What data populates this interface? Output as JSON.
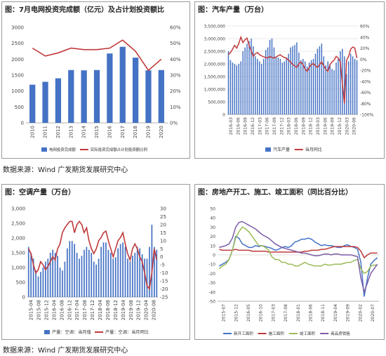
{
  "source_note": "数据来源：Wind  广发期货发展研究中心",
  "chart_data": [
    {
      "id": "grid",
      "type": "bar",
      "title": "图：7月电网投资完成额（亿元）及占计划投资额比",
      "categories": [
        "2010",
        "2011",
        "2012",
        "2013",
        "2014",
        "2015",
        "2016",
        "2017",
        "2018",
        "2019",
        "2020"
      ],
      "ylim": [
        0,
        3000
      ],
      "y_ticks": [
        "0",
        "500",
        "1000",
        "1500",
        "2000",
        "2500",
        "3000"
      ],
      "y2lim": [
        0,
        60
      ],
      "y2_ticks": [
        "0%",
        "10%",
        "20%",
        "30%",
        "40%",
        "50%",
        "60%"
      ],
      "colors": {
        "bar": "#4472c4",
        "line": "#c0393b"
      },
      "series": [
        {
          "name": "电网投资完成额",
          "axis": "left",
          "values": [
            1200,
            1290,
            1400,
            1660,
            1650,
            1660,
            2180,
            2390,
            2050,
            1650,
            1660
          ]
        },
        {
          "name": "实际投资完成额占计划投资额比例",
          "axis": "right",
          "values": [
            47,
            42,
            44,
            47,
            46,
            46,
            47,
            52,
            45,
            33,
            40
          ]
        }
      ]
    },
    {
      "id": "auto",
      "type": "bar",
      "title": "图：汽车产量（万台）",
      "x_ticks": [
        "2016-03",
        "2016-06",
        "2016-09",
        "2016-12",
        "2017-03",
        "2017-06",
        "2017-09",
        "2017-12",
        "2018-03",
        "2018-06",
        "2018-09",
        "2018-12",
        "2019-03",
        "2019-06",
        "2019-09",
        "2019-12",
        "2020-03",
        "2020-06"
      ],
      "ylim": [
        0,
        3500000
      ],
      "y_ticks": [
        "0",
        "500,000",
        "1,000,000",
        "1,500,000",
        "2,000,000",
        "2,500,000",
        "3,000,000",
        "3,500,000"
      ],
      "y2lim": [
        -100,
        60
      ],
      "y2_ticks": [
        "-100%",
        "-80%",
        "-60%",
        "-40%",
        "-20%",
        "0%",
        "20%",
        "40%",
        "60%"
      ],
      "colors": {
        "bar": "#4472c4",
        "line": "#c0393b"
      },
      "series": [
        {
          "name": "汽车产量",
          "axis": "left",
          "values": [
            2500000,
            2150000,
            2050000,
            2000000,
            1950000,
            2000000,
            2100000,
            2500000,
            2650000,
            2800000,
            2900000,
            3000000,
            2700000,
            2300000,
            2200000,
            2100000,
            2000000,
            2200000,
            2550000,
            2650000,
            2950000,
            3000000,
            2650000,
            2300000,
            2250000,
            2200000,
            2050000,
            2100000,
            2250000,
            2400000,
            2650000,
            2700000,
            2750000,
            2850000,
            2450000,
            2150000,
            2200000,
            2100000,
            1900000,
            2050000,
            2150000,
            2200000,
            2400000,
            2600000,
            2700000,
            2800000,
            2300000,
            1950000,
            2100000,
            1950000,
            1800000,
            1750000,
            2050000,
            2200000,
            2500000,
            2600000,
            2300000,
            1600000,
            2100000,
            2400000,
            2300000,
            2200000,
            2150000
          ]
        },
        {
          "name": "当月同比",
          "axis": "right",
          "values": [
            8,
            12,
            18,
            25,
            20,
            28,
            40,
            30,
            35,
            38,
            25,
            15,
            5,
            10,
            12,
            8,
            6,
            4,
            3,
            2,
            5,
            3,
            2,
            4,
            6,
            8,
            5,
            3,
            2,
            -2,
            -5,
            -10,
            -12,
            -15,
            -8,
            -5,
            -10,
            -18,
            -22,
            -15,
            -10,
            -8,
            -12,
            -15,
            -10,
            -5,
            -12,
            -18,
            -22,
            -10,
            -5,
            -2,
            5,
            2,
            -5,
            -45,
            -80,
            -2,
            5,
            18,
            22,
            20,
            2
          ]
        }
      ]
    },
    {
      "id": "ac",
      "type": "bar",
      "title": "图：空调产量（万台）",
      "x_ticks": [
        "2015-04",
        "2015-08",
        "2015-12",
        "2016-04",
        "2016-08",
        "2016-12",
        "2017-04",
        "2017-08",
        "2017-12",
        "2018-04",
        "2018-08",
        "2018-12",
        "2019-04",
        "2019-08",
        "2019-12",
        "2020-04",
        "2020-08"
      ],
      "ylim": [
        0,
        3000
      ],
      "y_ticks": [
        "0",
        "500",
        "1,000",
        "1,500",
        "2,000",
        "2,500",
        "3,000"
      ],
      "y2lim": [
        -25,
        30
      ],
      "y2_ticks": [
        "-25",
        "-20",
        "-15",
        "-10",
        "-5",
        "0",
        "5",
        "10",
        "15",
        "20",
        "25",
        "30"
      ],
      "colors": {
        "bar": "#4472c4",
        "line": "#c0393b"
      },
      "series": [
        {
          "name": "产量：空调：当月值",
          "axis": "left",
          "values": [
            1700,
            1500,
            1300,
            900,
            700,
            850,
            1000,
            1200,
            1300,
            1500,
            1600,
            1500,
            1400,
            1000,
            900,
            1200,
            1650,
            1900,
            1900,
            1800,
            1500,
            1300,
            1400,
            1600,
            1700,
            1600,
            1500,
            1200,
            1100,
            1300,
            1700,
            1850,
            1850,
            1600,
            1500,
            1300,
            1350,
            1650,
            1800,
            1850,
            1700,
            1300,
            1200,
            1400,
            1500,
            1700,
            1650,
            1450,
            1300,
            1300,
            1700,
            2450,
            1700,
            1600
          ]
        },
        {
          "name": "产量：空调：当月同比",
          "axis": "right",
          "values": [
            5,
            2,
            -5,
            -10,
            -8,
            -3,
            -5,
            -8,
            -6,
            -3,
            0,
            -2,
            5,
            8,
            15,
            18,
            20,
            22,
            22,
            15,
            20,
            22,
            20,
            15,
            18,
            10,
            5,
            2,
            5,
            10,
            12,
            15,
            16,
            10,
            5,
            0,
            5,
            10,
            12,
            15,
            8,
            2,
            -2,
            5,
            8,
            5,
            0,
            -3,
            -10,
            -18,
            -20,
            -10,
            5,
            -2
          ]
        }
      ]
    },
    {
      "id": "estate",
      "type": "line",
      "title": "图：房地产开工、施工、竣工面积（同比百分比）",
      "x_ticks": [
        "2015-07",
        "2015-12",
        "2016-05",
        "2016-10",
        "2017-03",
        "2017-08",
        "2018-01",
        "2018-06",
        "2018-11",
        "2019-04",
        "2019-09",
        "2020-02",
        "2020-07"
      ],
      "ylim": [
        -50,
        50
      ],
      "y_ticks": [
        "-50",
        "-40",
        "-30",
        "-20",
        "-10",
        "0",
        "10",
        "20",
        "30",
        "40",
        "50"
      ],
      "colors": [
        "#4472c4",
        "#c0393b",
        "#9bbb59",
        "#7b5ca6"
      ],
      "series": [
        {
          "name": "新开工面积",
          "values": [
            -12,
            -10,
            -8,
            -5,
            5,
            20,
            18,
            12,
            10,
            8,
            8,
            10,
            9,
            10,
            9,
            8,
            7,
            5,
            6,
            8,
            9,
            8,
            10,
            14,
            15,
            17,
            17,
            18,
            17,
            14,
            12,
            10,
            11,
            10,
            10,
            9,
            8,
            8,
            10,
            11,
            9,
            8,
            6,
            -8,
            -45,
            -25,
            -10,
            -6,
            -3
          ]
        },
        {
          "name": "施工面积",
          "values": [
            6,
            5,
            5,
            5,
            5,
            6,
            5,
            5,
            5,
            5,
            4,
            4,
            4,
            4,
            4,
            3,
            3,
            3,
            3,
            3,
            3,
            3,
            3,
            3,
            3,
            3,
            4,
            4,
            5,
            5,
            5,
            6,
            6,
            7,
            8,
            9,
            9,
            9,
            9,
            9,
            9,
            9,
            8,
            4,
            -3,
            0,
            2,
            2,
            2
          ]
        },
        {
          "name": "竣工面积",
          "values": [
            -15,
            -12,
            -10,
            -5,
            5,
            18,
            25,
            30,
            28,
            25,
            20,
            15,
            10,
            10,
            8,
            5,
            -2,
            -5,
            -5,
            -8,
            -8,
            -10,
            -10,
            -12,
            -12,
            -10,
            -8,
            -10,
            -11,
            -12,
            -12,
            -12,
            -10,
            -11,
            -11,
            -10,
            -10,
            -10,
            -9,
            -8,
            -8,
            -6,
            -5,
            -15,
            -20,
            -18,
            -12,
            -11,
            -11
          ]
        },
        {
          "name": "商品房销售",
          "values": [
            8,
            9,
            10,
            12,
            18,
            30,
            35,
            36,
            34,
            32,
            30,
            28,
            25,
            22,
            20,
            18,
            15,
            12,
            10,
            8,
            7,
            6,
            5,
            4,
            3,
            2,
            2,
            1,
            0,
            -1,
            -1,
            0,
            1,
            1,
            0,
            1,
            1,
            0,
            0,
            0,
            0,
            -1,
            -2,
            -25,
            -40,
            -30,
            -20,
            -15,
            -10
          ]
        }
      ]
    }
  ]
}
